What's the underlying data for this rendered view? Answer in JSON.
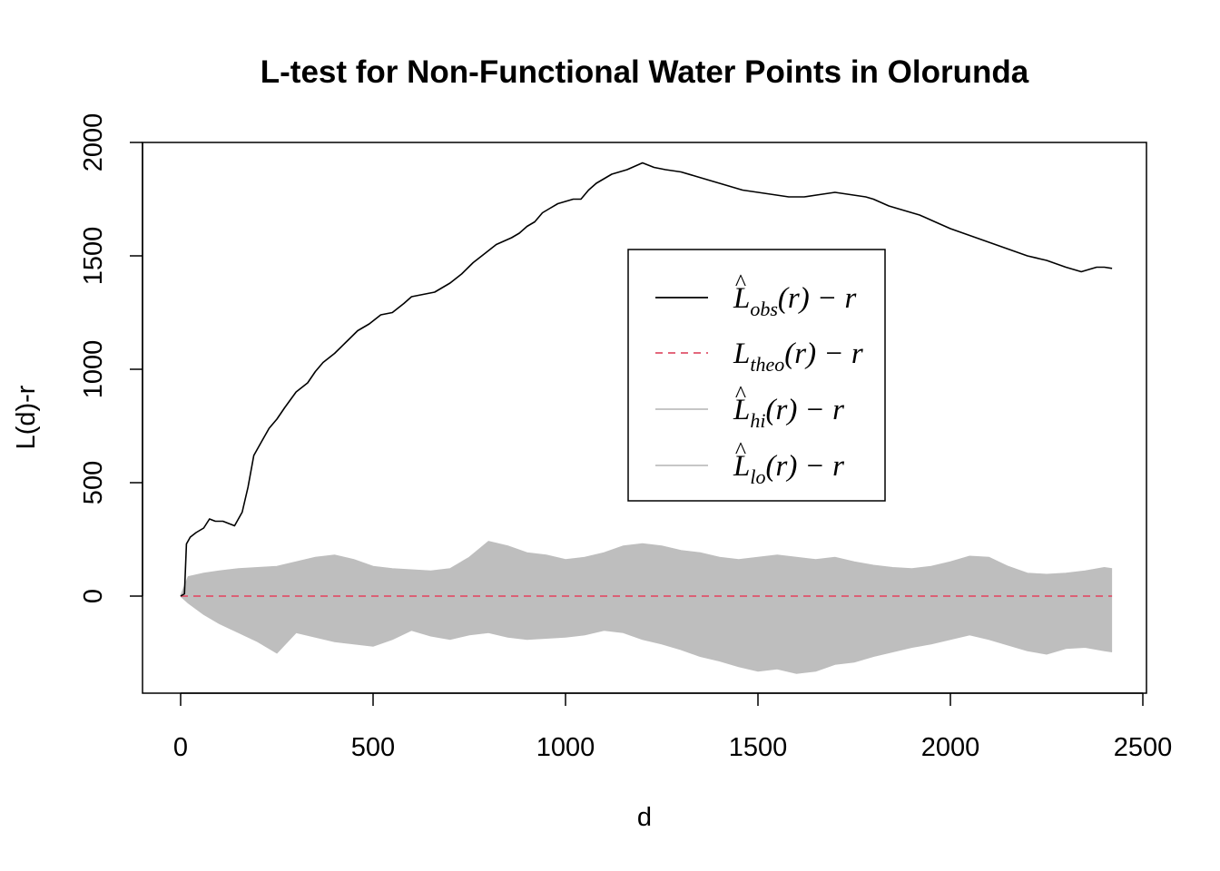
{
  "chart_data": {
    "type": "line",
    "title": "L-test for Non-Functional Water Points in Olorunda",
    "xlabel": "d",
    "ylabel": "L(d)-r",
    "xlim": [
      0,
      2500
    ],
    "ylim": [
      -400,
      2000
    ],
    "x_ticks": [
      "0",
      "500",
      "1000",
      "1500",
      "2000",
      "2500"
    ],
    "y_ticks": [
      "0",
      "500",
      "1000",
      "1500",
      "2000"
    ],
    "legend_position": "center-right",
    "colors": {
      "obs": "#000000",
      "theo": "#DF536B",
      "envelope": "#BEBEBE"
    },
    "legend": [
      {
        "key": "obs",
        "main": "L",
        "hat": "^",
        "sub": "obs",
        "rest": "(r) − r",
        "style": "solid",
        "color": "#000000"
      },
      {
        "key": "theo",
        "main": "L",
        "hat": "",
        "sub": "theo",
        "rest": "(r) − r",
        "style": "dashed",
        "color": "#DF536B"
      },
      {
        "key": "hi",
        "main": "L",
        "hat": "^",
        "sub": "hi",
        "rest": "(r) − r",
        "style": "solid",
        "color": "#BEBEBE"
      },
      {
        "key": "lo",
        "main": "L",
        "hat": "^",
        "sub": "lo",
        "rest": "(r) − r",
        "style": "solid",
        "color": "#BEBEBE"
      }
    ],
    "series": [
      {
        "name": "obs",
        "x": [
          0,
          10,
          15,
          25,
          40,
          60,
          75,
          90,
          110,
          125,
          140,
          150,
          160,
          175,
          190,
          210,
          230,
          250,
          270,
          300,
          330,
          350,
          370,
          400,
          430,
          460,
          490,
          520,
          550,
          580,
          600,
          630,
          660,
          700,
          730,
          760,
          790,
          820,
          860,
          880,
          900,
          920,
          940,
          960,
          980,
          1000,
          1020,
          1040,
          1060,
          1080,
          1100,
          1120,
          1160,
          1200,
          1230,
          1260,
          1300,
          1340,
          1380,
          1420,
          1460,
          1500,
          1540,
          1580,
          1620,
          1660,
          1700,
          1740,
          1780,
          1800,
          1840,
          1880,
          1920,
          1960,
          2000,
          2050,
          2100,
          2150,
          2200,
          2250,
          2300,
          2340,
          2360,
          2380,
          2400,
          2420
        ],
        "y": [
          0,
          10,
          230,
          260,
          280,
          300,
          340,
          330,
          330,
          320,
          310,
          340,
          370,
          480,
          620,
          680,
          740,
          780,
          830,
          900,
          940,
          990,
          1030,
          1070,
          1120,
          1170,
          1200,
          1240,
          1250,
          1290,
          1320,
          1330,
          1340,
          1380,
          1420,
          1470,
          1510,
          1550,
          1580,
          1600,
          1630,
          1650,
          1690,
          1710,
          1730,
          1740,
          1750,
          1750,
          1790,
          1820,
          1840,
          1860,
          1880,
          1910,
          1890,
          1880,
          1870,
          1850,
          1830,
          1810,
          1790,
          1780,
          1770,
          1760,
          1760,
          1770,
          1780,
          1770,
          1760,
          1750,
          1720,
          1700,
          1680,
          1650,
          1620,
          1590,
          1560,
          1530,
          1500,
          1480,
          1450,
          1430,
          1440,
          1450,
          1450,
          1445
        ]
      },
      {
        "name": "theo",
        "x": [
          0,
          2420
        ],
        "y": [
          0,
          0
        ]
      },
      {
        "name": "hi",
        "x": [
          0,
          20,
          60,
          100,
          150,
          200,
          250,
          300,
          350,
          400,
          450,
          500,
          550,
          600,
          650,
          700,
          750,
          800,
          850,
          900,
          950,
          1000,
          1050,
          1100,
          1150,
          1200,
          1250,
          1300,
          1350,
          1400,
          1450,
          1500,
          1550,
          1600,
          1650,
          1700,
          1750,
          1800,
          1850,
          1900,
          1950,
          2000,
          2050,
          2100,
          2150,
          2200,
          2250,
          2300,
          2350,
          2400,
          2420
        ],
        "y": [
          0,
          85,
          100,
          110,
          120,
          125,
          130,
          150,
          170,
          180,
          160,
          130,
          120,
          115,
          110,
          120,
          170,
          240,
          220,
          190,
          180,
          160,
          170,
          190,
          220,
          230,
          220,
          200,
          190,
          170,
          160,
          170,
          180,
          170,
          160,
          170,
          150,
          135,
          125,
          120,
          130,
          150,
          175,
          170,
          130,
          100,
          95,
          100,
          110,
          125,
          120
        ]
      },
      {
        "name": "lo",
        "x": [
          0,
          20,
          60,
          100,
          150,
          200,
          250,
          300,
          350,
          400,
          450,
          500,
          550,
          600,
          650,
          700,
          750,
          800,
          850,
          900,
          950,
          1000,
          1050,
          1100,
          1150,
          1200,
          1250,
          1300,
          1350,
          1400,
          1450,
          1500,
          1550,
          1600,
          1650,
          1700,
          1750,
          1800,
          1850,
          1900,
          1950,
          2000,
          2050,
          2100,
          2150,
          2200,
          2250,
          2300,
          2350,
          2400,
          2420
        ],
        "y": [
          0,
          -30,
          -80,
          -120,
          -160,
          -200,
          -250,
          -160,
          -180,
          -200,
          -210,
          -220,
          -190,
          -150,
          -175,
          -190,
          -170,
          -160,
          -180,
          -190,
          -185,
          -180,
          -170,
          -150,
          -160,
          -190,
          -210,
          -235,
          -265,
          -285,
          -310,
          -330,
          -320,
          -340,
          -330,
          -300,
          -290,
          -265,
          -245,
          -225,
          -210,
          -190,
          -170,
          -190,
          -215,
          -240,
          -255,
          -230,
          -225,
          -240,
          -245
        ]
      }
    ]
  }
}
